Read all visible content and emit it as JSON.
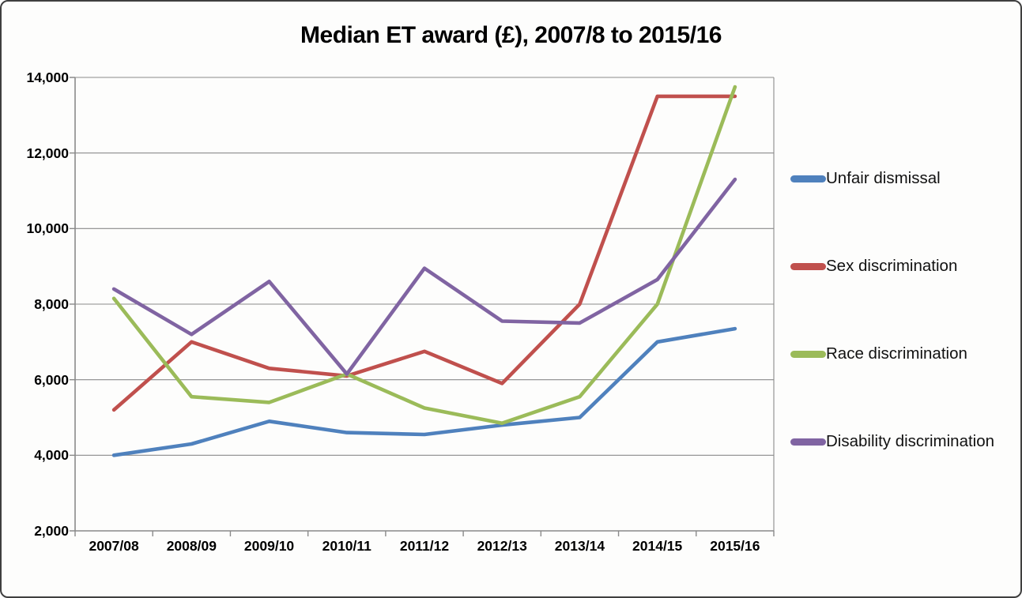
{
  "chart_data": {
    "type": "line",
    "title": "Median ET award (£), 2007/8 to 2015/16",
    "categories": [
      "2007/08",
      "2008/09",
      "2009/10",
      "2010/11",
      "2011/12",
      "2012/13",
      "2013/14",
      "2014/15",
      "2015/16"
    ],
    "series": [
      {
        "name": "Unfair dismissal",
        "color": "#4F81BD",
        "values": [
          4000,
          4300,
          4900,
          4600,
          4550,
          4800,
          5000,
          7000,
          7350
        ]
      },
      {
        "name": "Sex discrimination",
        "color": "#C0504D",
        "values": [
          5200,
          7000,
          6300,
          6100,
          6750,
          5900,
          8000,
          13500,
          13500
        ]
      },
      {
        "name": "Race discrimination",
        "color": "#9BBB59",
        "values": [
          8150,
          5550,
          5400,
          6150,
          5250,
          4850,
          5550,
          8000,
          13750
        ]
      },
      {
        "name": "Disability discrimination",
        "color": "#8064A2",
        "values": [
          8400,
          7200,
          8600,
          6150,
          8950,
          7550,
          7500,
          8650,
          11300
        ]
      }
    ],
    "xlabel": "",
    "ylabel": "",
    "y_axis": {
      "min": 2000,
      "max": 14000,
      "step": 2000,
      "tick_labels": [
        "2,000",
        "4,000",
        "6,000",
        "8,000",
        "10,000",
        "12,000",
        "14,000"
      ]
    },
    "grid": "horizontal",
    "legend_position": "right",
    "grid_color": "#8A8A8A",
    "axis_color": "#8A8A8A",
    "text_color": "#000000"
  }
}
